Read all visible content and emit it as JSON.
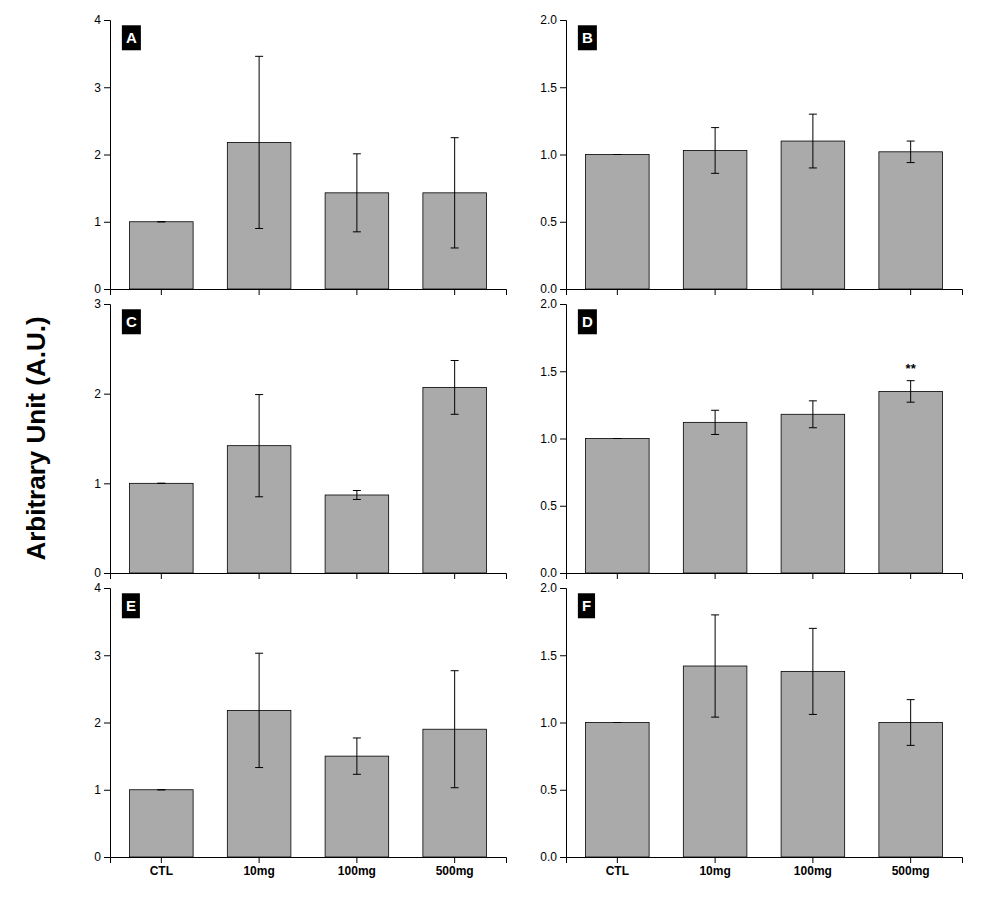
{
  "ylabel": "Arbitrary Unit (A.U.)",
  "chart_data": [
    {
      "type": "bar",
      "title": "A",
      "categories": [
        "CTL",
        "10mg",
        "100mg",
        "500mg"
      ],
      "values": [
        1.0,
        2.18,
        1.43,
        1.43
      ],
      "errors": [
        0.0,
        1.28,
        0.58,
        0.82
      ],
      "color": "#aaaaaa",
      "ylim": [
        0,
        4
      ],
      "yticks": [
        0,
        1,
        2,
        3,
        4
      ],
      "tick_labels": "y"
    },
    {
      "type": "bar",
      "title": "B",
      "categories": [
        "CTL",
        "10mg",
        "100mg",
        "500mg"
      ],
      "values": [
        1.0,
        1.03,
        1.1,
        1.02
      ],
      "errors": [
        0.0,
        0.17,
        0.2,
        0.08
      ],
      "color": "#aaaaaa",
      "ylim": [
        0.0,
        2.0
      ],
      "yticks": [
        {
          "value": 0.0,
          "label": "0.0"
        },
        {
          "value": 0.5,
          "label": "0.5"
        },
        {
          "value": 1.0,
          "label": "1.0"
        },
        {
          "value": 1.5,
          "label": "1.5"
        },
        {
          "value": 2.0,
          "label": "2.0"
        }
      ],
      "tick_labels": "y"
    },
    {
      "type": "bar",
      "title": "C",
      "categories": [
        "CTL",
        "10mg",
        "100mg",
        "500mg"
      ],
      "values": [
        1.0,
        1.42,
        0.87,
        2.07
      ],
      "errors": [
        0.0,
        0.57,
        0.05,
        0.3
      ],
      "color": "#aaaaaa",
      "ylim": [
        0,
        3
      ],
      "yticks": [
        0,
        1,
        2,
        3
      ],
      "tick_labels": "y"
    },
    {
      "type": "bar",
      "title": "D",
      "categories": [
        "CTL",
        "10mg",
        "100mg",
        "500mg"
      ],
      "values": [
        1.0,
        1.12,
        1.18,
        1.35
      ],
      "errors": [
        0.0,
        0.09,
        0.1,
        0.08
      ],
      "color": "#aaaaaa",
      "ylim": [
        0.0,
        2.0
      ],
      "yticks": [
        {
          "value": 0.0,
          "label": "0.0"
        },
        {
          "value": 0.5,
          "label": "0.5"
        },
        {
          "value": 1.0,
          "label": "1.0"
        },
        {
          "value": 1.5,
          "label": "1.5"
        },
        {
          "value": 2.0,
          "label": "2.0"
        }
      ],
      "tick_labels": "y",
      "annotations": [
        {
          "x": "500mg",
          "text": "**"
        }
      ]
    },
    {
      "type": "bar",
      "title": "E",
      "categories": [
        "CTL",
        "10mg",
        "100mg",
        "500mg"
      ],
      "values": [
        1.0,
        2.18,
        1.5,
        1.9
      ],
      "errors": [
        0.0,
        0.85,
        0.27,
        0.87
      ],
      "color": "#aaaaaa",
      "ylim": [
        0,
        4
      ],
      "yticks": [
        0,
        1,
        2,
        3,
        4
      ]
    },
    {
      "type": "bar",
      "title": "F",
      "categories": [
        "CTL",
        "10mg",
        "100mg",
        "500mg"
      ],
      "values": [
        1.0,
        1.42,
        1.38,
        1.0
      ],
      "errors": [
        0.0,
        0.38,
        0.32,
        0.17
      ],
      "color": "#aaaaaa",
      "ylim": [
        0.0,
        2.0
      ],
      "yticks": [
        {
          "value": 0.0,
          "label": "0.0"
        },
        {
          "value": 0.5,
          "label": "0.5"
        },
        {
          "value": 1.0,
          "label": "1.0"
        },
        {
          "value": 1.5,
          "label": "1.5"
        },
        {
          "value": 2.0,
          "label": "2.0"
        }
      ]
    }
  ]
}
